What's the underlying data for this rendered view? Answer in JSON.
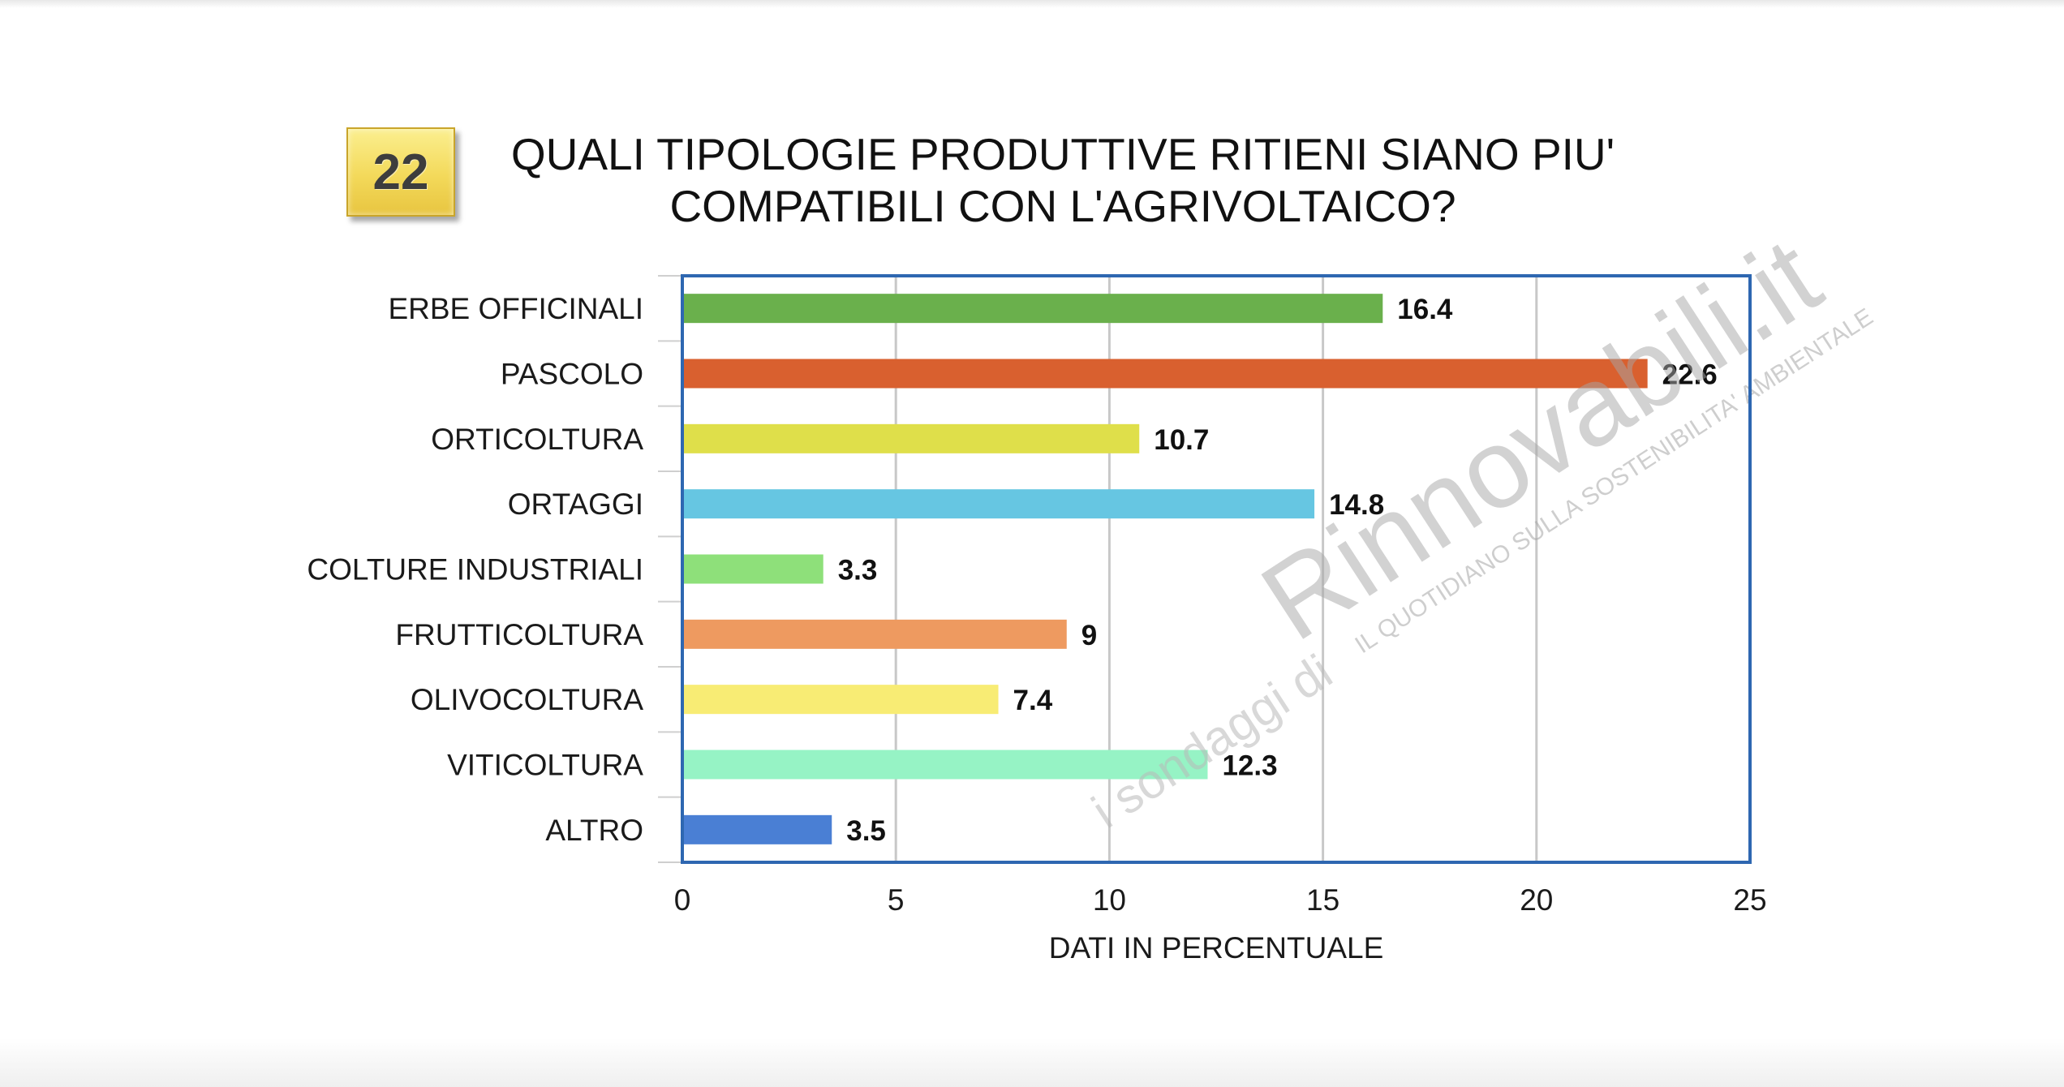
{
  "badge_number": "22",
  "title_line1": "QUALI TIPOLOGIE PRODUTTIVE RITIENI SIANO PIU'",
  "title_line2": "COMPATIBILI CON L'AGRIVOLTAICO?",
  "watermark": {
    "prefix": "i sondaggi di",
    "brand": "Rinnovabili.it",
    "tagline": "IL QUOTIDIANO SULLA SOSTENIBILITA' AMBIENTALE"
  },
  "chart_data": {
    "type": "bar",
    "orientation": "horizontal",
    "title": "QUALI TIPOLOGIE PRODUTTIVE RITIENI SIANO PIU' COMPATIBILI CON L'AGRIVOLTAICO?",
    "xlabel": "DATI IN PERCENTUALE",
    "ylabel": "",
    "xlim": [
      0,
      25
    ],
    "xticks": [
      0,
      5,
      10,
      15,
      20,
      25
    ],
    "grid": "vertical",
    "legend": "none",
    "categories": [
      "ERBE OFFICINALI",
      "PASCOLO",
      "ORTICOLTURA",
      "ORTAGGI",
      "COLTURE INDUSTRIALI",
      "FRUTTICOLTURA",
      "OLIVOCOLTURA",
      "VITICOLTURA",
      "ALTRO"
    ],
    "values": [
      16.4,
      22.6,
      10.7,
      14.8,
      3.3,
      9,
      7.4,
      12.3,
      3.5
    ],
    "value_labels": [
      "16.4",
      "22.6",
      "10.7",
      "14.8",
      "3.3",
      "9",
      "7.4",
      "12.3",
      "3.5"
    ],
    "colors": [
      "#6ab04c",
      "#d9602f",
      "#dfdf4a",
      "#66c6e2",
      "#8ee07a",
      "#ee9a60",
      "#f8ec74",
      "#96f3c5",
      "#4a7fd4"
    ],
    "frame_color": "#2e67b1",
    "grid_color": "#c8c8c8"
  }
}
